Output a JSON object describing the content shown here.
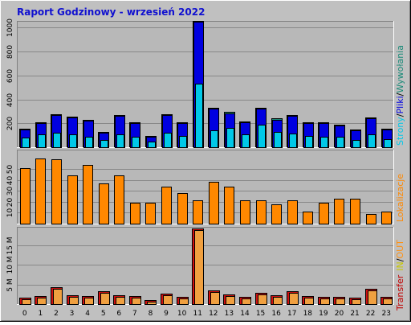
{
  "title": "Raport Godzinowy -  wrzesień 2022",
  "colors": {
    "background": "#c0c0c0",
    "plot_bg": "#b8b8b8",
    "title": "#1010d0",
    "pages": "#00c8e8",
    "files": "#0000e0",
    "hits": "#1a8a78",
    "visits": "#ff8800",
    "in": "#c8c800",
    "out": "#ff9010",
    "transfer": "#c00000",
    "transfer_bar": "#f0a040",
    "transfer_dark": "#d01010"
  },
  "side_labels": {
    "top": {
      "strony": "Strony",
      "pliki": "Pliki",
      "wywolania": "Wywołania",
      "sep": "/"
    },
    "middle": {
      "lokalizacje": "Lokalizacje"
    },
    "bottom": {
      "transfer": "Transfer",
      "in": "IN",
      "out": "OUT",
      "sep": "/"
    }
  },
  "chart_data": [
    {
      "type": "bar",
      "panel": "top",
      "categories": [
        "0",
        "1",
        "2",
        "3",
        "4",
        "5",
        "6",
        "7",
        "8",
        "9",
        "10",
        "11",
        "12",
        "13",
        "14",
        "15",
        "16",
        "17",
        "18",
        "19",
        "20",
        "21",
        "22",
        "23"
      ],
      "ylim": [
        0,
        1050
      ],
      "yticks": [
        200,
        400,
        600,
        800,
        1000
      ],
      "series": [
        {
          "name": "Wywołania",
          "values": [
            150,
            200,
            270,
            250,
            220,
            120,
            260,
            200,
            90,
            270,
            200,
            1050,
            320,
            290,
            210,
            320,
            235,
            260,
            200,
            200,
            180,
            140,
            240,
            150
          ]
        },
        {
          "name": "Pliki",
          "values": [
            150,
            200,
            270,
            250,
            220,
            120,
            260,
            200,
            90,
            270,
            200,
            1050,
            320,
            280,
            210,
            320,
            230,
            260,
            200,
            200,
            180,
            140,
            240,
            150
          ]
        },
        {
          "name": "Strony",
          "values": [
            80,
            110,
            120,
            110,
            90,
            60,
            110,
            85,
            45,
            120,
            95,
            530,
            140,
            160,
            105,
            190,
            125,
            115,
            95,
            85,
            85,
            60,
            105,
            70
          ]
        }
      ]
    },
    {
      "type": "bar",
      "panel": "middle",
      "categories": [
        "0",
        "1",
        "2",
        "3",
        "4",
        "5",
        "6",
        "7",
        "8",
        "9",
        "10",
        "11",
        "12",
        "13",
        "14",
        "15",
        "16",
        "17",
        "18",
        "19",
        "20",
        "21",
        "22",
        "23"
      ],
      "ylim": [
        0,
        67
      ],
      "yticks": [
        10,
        20,
        30,
        40,
        50
      ],
      "series": [
        {
          "name": "Lokalizacje",
          "values": [
            51,
            60,
            59,
            44,
            54,
            37,
            44,
            19,
            19,
            34,
            28,
            21,
            38,
            34,
            21,
            21,
            18,
            21,
            11,
            19,
            23,
            23,
            9,
            11
          ]
        }
      ]
    },
    {
      "type": "bar",
      "panel": "bottom",
      "categories": [
        "0",
        "1",
        "2",
        "3",
        "4",
        "5",
        "6",
        "7",
        "8",
        "9",
        "10",
        "11",
        "12",
        "13",
        "14",
        "15",
        "16",
        "17",
        "18",
        "19",
        "20",
        "21",
        "22",
        "23"
      ],
      "ylim": [
        0,
        19.5
      ],
      "yticks": [
        5,
        10,
        15
      ],
      "ytick_labels": [
        "5 M",
        "10 M",
        "15 M"
      ],
      "series": [
        {
          "name": "Transfer",
          "values": [
            1.6,
            2.1,
            4.3,
            2.3,
            2.1,
            3.3,
            2.3,
            2.0,
            1.0,
            2.6,
            1.9,
            19.2,
            3.4,
            2.5,
            1.8,
            2.8,
            2.2,
            3.2,
            2.0,
            1.9,
            1.8,
            1.6,
            4.0,
            1.9
          ]
        }
      ]
    }
  ]
}
